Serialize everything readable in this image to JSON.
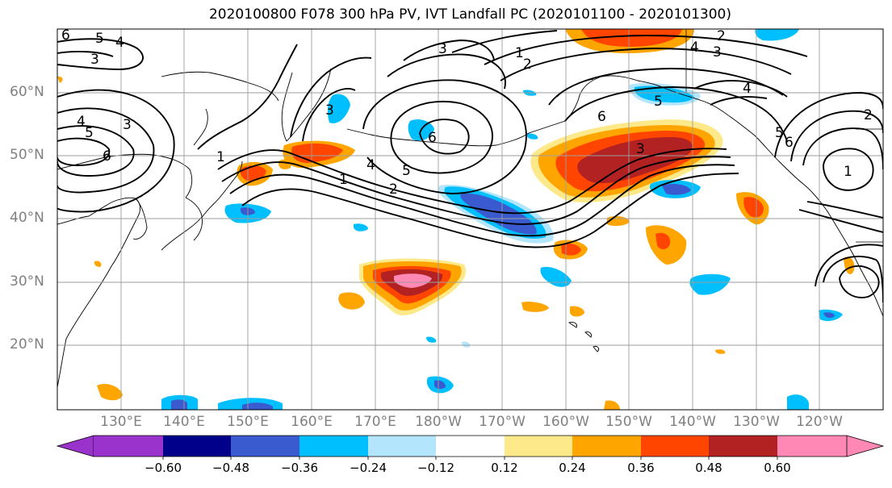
{
  "title": "2020100800 F078 300 hPa PV, IVT Landfall PC (2020101100 - 2020101300)",
  "lat_labels": [
    "60°N",
    "50°N",
    "40°N",
    "30°N",
    "20°N"
  ],
  "lon_labels": [
    "130°E",
    "140°E",
    "150°E",
    "160°E",
    "170°E",
    "180°W",
    "170°W",
    "160°W",
    "150°W",
    "140°W",
    "130°W",
    "120°W"
  ],
  "colorbar": {
    "ticks": [
      "−0.60",
      "−0.48",
      "−0.36",
      "−0.24",
      "−0.12",
      "0.12",
      "0.24",
      "0.36",
      "0.48",
      "0.60"
    ],
    "colors": [
      "#9933cc",
      "#00008b",
      "#3a5bcf",
      "#00bfff",
      "#b3e5fc",
      "#ffffff",
      "#fde98a",
      "#ffa500",
      "#ff4500",
      "#b22222",
      "#ff88b4"
    ]
  },
  "contour_labels": [
    "6",
    "5",
    "4",
    "3",
    "4",
    "5",
    "6",
    "3",
    "1",
    "3",
    "4",
    "5",
    "1",
    "2",
    "6",
    "3",
    "2",
    "1",
    "2",
    "3",
    "4",
    "5",
    "6",
    "3",
    "4",
    "5",
    "6",
    "1",
    "2"
  ],
  "map_colors": {
    "land_border": "#000000",
    "contour": "#000000",
    "grid": "#9e9e9e"
  }
}
